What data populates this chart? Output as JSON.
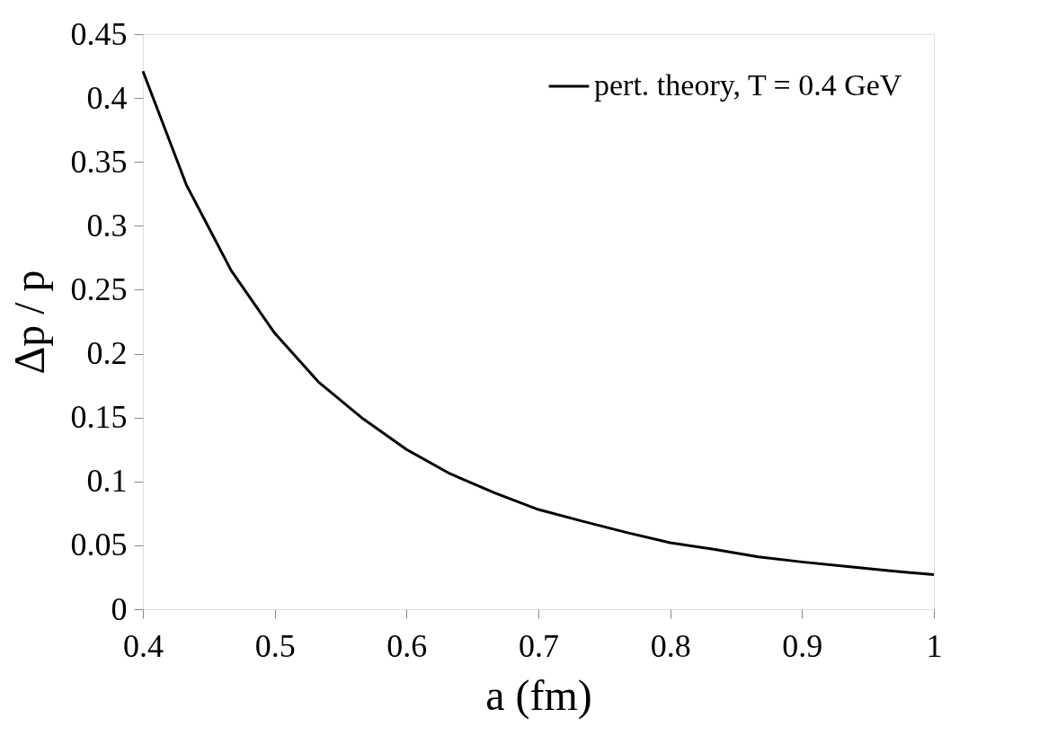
{
  "chart_data": {
    "type": "line",
    "xlabel": "a (fm)",
    "ylabel": "Δp / p",
    "x": [
      0.4,
      0.433,
      0.467,
      0.5,
      0.533,
      0.567,
      0.6,
      0.633,
      0.667,
      0.7,
      0.733,
      0.767,
      0.8,
      0.833,
      0.867,
      0.9,
      0.933,
      0.967,
      1.0
    ],
    "series": [
      {
        "name": "pert. theory, T = 0.4 GeV",
        "color": "#000000",
        "values": [
          0.421,
          0.332,
          0.265,
          0.216,
          0.178,
          0.149,
          0.125,
          0.106,
          0.091,
          0.078,
          0.069,
          0.06,
          0.052,
          0.047,
          0.041,
          0.037,
          0.0335,
          0.03,
          0.027
        ]
      }
    ],
    "xlim": [
      0.4,
      1.0
    ],
    "xticks": [
      0.4,
      0.5,
      0.6,
      0.7,
      0.8,
      0.9,
      {
        "value": 1.0,
        "label": "1"
      }
    ],
    "ylim": [
      0,
      0.45
    ],
    "yticks": [
      0,
      0.05,
      0.1,
      0.15,
      0.2,
      0.25,
      0.3,
      0.35,
      0.4,
      0.45
    ],
    "grid": false,
    "legend": "top right",
    "marker": "none",
    "line_style": "solid"
  }
}
